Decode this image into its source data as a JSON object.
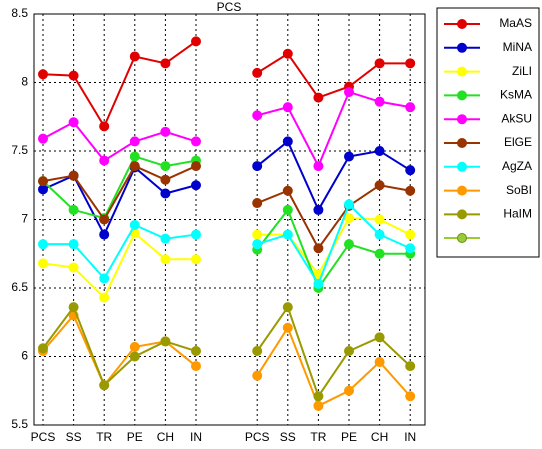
{
  "chart_data": {
    "type": "line",
    "title": "PCS",
    "categories": [
      "PCS",
      "SS",
      "TR",
      "PE",
      "CH",
      "IN",
      null,
      "PCS",
      "SS",
      "TR",
      "PE",
      "CH",
      "IN"
    ],
    "ylim": [
      5.5,
      8.5
    ],
    "yticks": [
      5.5,
      6,
      6.5,
      7,
      7.5,
      8,
      8.5
    ],
    "grid": true,
    "legend": "right",
    "series": [
      {
        "name": "MaAS",
        "color": "#e00000",
        "values": [
          8.06,
          8.05,
          7.68,
          8.19,
          8.14,
          8.3,
          null,
          8.07,
          8.21,
          7.89,
          7.97,
          8.14,
          8.14
        ]
      },
      {
        "name": "MiNA",
        "color": "#0000cc",
        "values": [
          7.22,
          7.32,
          6.89,
          7.38,
          7.19,
          7.25,
          null,
          7.39,
          7.57,
          7.07,
          7.46,
          7.5,
          7.36
        ]
      },
      {
        "name": "ZiLI",
        "color": "#ffff00",
        "values": [
          6.68,
          6.65,
          6.43,
          6.9,
          6.71,
          6.71,
          null,
          6.89,
          6.89,
          6.6,
          7.01,
          7.0,
          6.89
        ]
      },
      {
        "name": "KsMA",
        "color": "#22e022",
        "values": [
          7.28,
          7.07,
          7.01,
          7.46,
          7.39,
          7.43,
          null,
          6.78,
          7.07,
          6.5,
          6.82,
          6.75,
          6.75
        ]
      },
      {
        "name": "AkSU",
        "color": "#ff00ff",
        "values": [
          7.59,
          7.71,
          7.43,
          7.57,
          7.64,
          7.57,
          null,
          7.76,
          7.82,
          7.39,
          7.93,
          7.86,
          7.82
        ]
      },
      {
        "name": "ElGE",
        "color": "#993300",
        "values": [
          7.28,
          7.32,
          7.0,
          7.39,
          7.29,
          7.39,
          null,
          7.12,
          7.21,
          6.79,
          7.1,
          7.25,
          7.21
        ]
      },
      {
        "name": "AgZA",
        "color": "#00ffff",
        "values": [
          6.82,
          6.82,
          6.57,
          6.96,
          6.86,
          6.89,
          null,
          6.82,
          6.89,
          6.53,
          7.11,
          6.89,
          6.79
        ]
      },
      {
        "name": "SoBI",
        "color": "#ff9900",
        "values": [
          6.04,
          6.3,
          5.79,
          6.07,
          6.11,
          5.93,
          null,
          5.86,
          6.21,
          5.64,
          5.75,
          5.96,
          5.71
        ]
      },
      {
        "name": "HaIM",
        "color": "#999900",
        "values": [
          6.06,
          6.36,
          5.79,
          6.0,
          6.11,
          6.04,
          null,
          6.04,
          6.36,
          5.71,
          6.04,
          6.14,
          5.93
        ]
      }
    ]
  }
}
